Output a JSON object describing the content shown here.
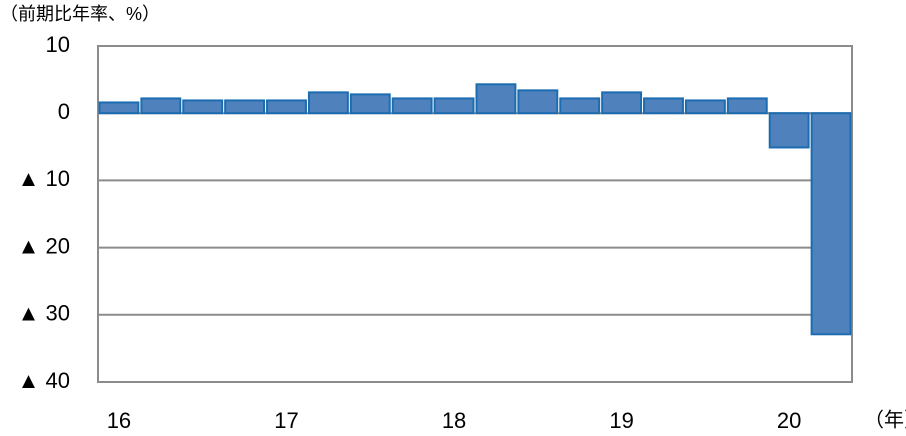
{
  "chart_data": {
    "type": "bar",
    "y_label": "（前期比年率、%）",
    "x_unit": "（年）",
    "categories": [
      "16",
      null,
      null,
      null,
      "17",
      null,
      null,
      null,
      "18",
      null,
      null,
      null,
      "19",
      null,
      null,
      null,
      "20",
      null
    ],
    "values": [
      1.6,
      2.2,
      1.9,
      1.9,
      1.9,
      3.1,
      2.8,
      2.2,
      2.2,
      4.3,
      3.4,
      2.2,
      3.1,
      2.2,
      1.9,
      2.2,
      -5.1,
      -32.9
    ],
    "color": "#4f81bd",
    "edge_color": "#1b6cb0",
    "ylim": [
      -40,
      10
    ],
    "yticks": [
      10,
      0,
      {
        "value": -10,
        "label": "▲ 10"
      },
      {
        "value": -20,
        "label": "▲ 20"
      },
      {
        "value": -30,
        "label": "▲ 30"
      },
      {
        "value": -40,
        "label": "▲ 40"
      }
    ],
    "grid": true
  }
}
